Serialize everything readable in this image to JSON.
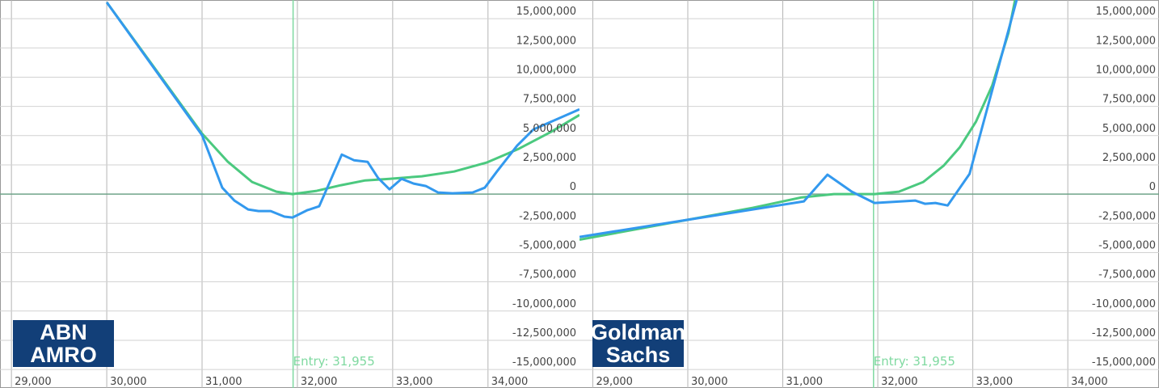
{
  "chart_data": [
    {
      "type": "line",
      "logo": [
        "ABN",
        "AMRO"
      ],
      "annotation": {
        "text": "Entry: 31,955",
        "x": 31955,
        "color": "#7fd9a0"
      },
      "xlim": [
        28880,
        34960
      ],
      "ylim": [
        -15200000,
        16600000
      ],
      "xticks": [
        {
          "value": 29000,
          "label": "29,000"
        },
        {
          "value": 30000,
          "label": "30,000"
        },
        {
          "value": 31000,
          "label": "31,000"
        },
        {
          "value": 32000,
          "label": "32,000"
        },
        {
          "value": 33000,
          "label": "33,000"
        },
        {
          "value": 34000,
          "label": "34,000"
        }
      ],
      "yticks": [
        {
          "value": 15000000,
          "label": "15,000,000"
        },
        {
          "value": 12500000,
          "label": "12,500,000"
        },
        {
          "value": 10000000,
          "label": "10,000,000"
        },
        {
          "value": 7500000,
          "label": "7,500,000"
        },
        {
          "value": 5000000,
          "label": "5,000,000"
        },
        {
          "value": 2500000,
          "label": "2,500,000"
        },
        0,
        {
          "value": -2500000,
          "label": "-2,500,000"
        },
        {
          "value": -5000000,
          "label": "-5,000,000"
        },
        {
          "value": -7500000,
          "label": "-7,500,000"
        },
        {
          "value": -10000000,
          "label": "-10,000,000"
        },
        {
          "value": -12500000,
          "label": "-12,500,000"
        },
        {
          "value": -15000000,
          "label": "-15,000,000"
        }
      ],
      "grid": true,
      "series": [
        {
          "color": "#4bc97f",
          "x": [
            30000,
            30492,
            31000,
            31271,
            31525,
            31780,
            31949,
            32203,
            32458,
            32712,
            32966,
            33305,
            33644,
            33983,
            34322,
            34661,
            34960
          ],
          "values": [
            16400000,
            10900000,
            5180000,
            2760000,
            1040000,
            210000,
            0,
            280000,
            760000,
            1170000,
            1310000,
            1520000,
            1930000,
            2690000,
            3870000,
            5320000,
            6770000
          ]
        },
        {
          "color": "#3399ee",
          "x": [
            30000,
            31000,
            31212,
            31339,
            31483,
            31593,
            31720,
            31864,
            31949,
            32102,
            32229,
            32466,
            32593,
            32737,
            32847,
            32966,
            33093,
            33220,
            33347,
            33475,
            33627,
            33839,
            33966,
            34093,
            34305,
            34475,
            34960
          ],
          "values": [
            16400000,
            5040000,
            550000,
            -550000,
            -1310000,
            -1450000,
            -1450000,
            -1930000,
            -2000000,
            -1380000,
            -1040000,
            3380000,
            2900000,
            2760000,
            1380000,
            410000,
            1310000,
            900000,
            690000,
            140000,
            70000,
            140000,
            550000,
            1930000,
            4140000,
            5520000,
            7250000
          ]
        }
      ]
    },
    {
      "type": "line",
      "logo": [
        "Goldman",
        "Sachs"
      ],
      "annotation": {
        "text": "Entry: 31,955",
        "x": 31955,
        "color": "#7fd9a0"
      },
      "xlim": [
        28860,
        34960
      ],
      "ylim": [
        -15200000,
        16600000
      ],
      "xticks": [
        {
          "value": 29000,
          "label": "29,000"
        },
        {
          "value": 30000,
          "label": "30,000"
        },
        {
          "value": 31000,
          "label": "31,000"
        },
        {
          "value": 32000,
          "label": "32,000"
        },
        {
          "value": 33000,
          "label": "33,000"
        },
        {
          "value": 34000,
          "label": "34,000"
        }
      ],
      "yticks": [
        {
          "value": 15000000,
          "label": "15,000,000"
        },
        {
          "value": 12500000,
          "label": "12,500,000"
        },
        {
          "value": 10000000,
          "label": "10,000,000"
        },
        {
          "value": 7500000,
          "label": "7,500,000"
        },
        {
          "value": 5000000,
          "label": "5,000,000"
        },
        {
          "value": 2500000,
          "label": "2,500,000"
        },
        0,
        {
          "value": -2500000,
          "label": "-2,500,000"
        },
        {
          "value": -5000000,
          "label": "-5,000,000"
        },
        {
          "value": -7500000,
          "label": "-7,500,000"
        },
        {
          "value": -10000000,
          "label": "-10,000,000"
        },
        {
          "value": -12500000,
          "label": "-12,500,000"
        },
        {
          "value": -15000000,
          "label": "-15,000,000"
        }
      ],
      "grid": true,
      "series": [
        {
          "color": "#4bc97f",
          "x": [
            28860,
            30000,
            30684,
            31197,
            31538,
            31966,
            32222,
            32479,
            32692,
            32863,
            33034,
            33205,
            33376,
            33445
          ],
          "values": [
            -3900000,
            -2200000,
            -1170000,
            -280000,
            0,
            0,
            210000,
            1040000,
            2420000,
            4000000,
            6200000,
            9300000,
            13800000,
            16600000
          ]
        },
        {
          "color": "#3399ee",
          "x": [
            28860,
            31222,
            31470,
            31726,
            31966,
            32393,
            32496,
            32607,
            32735,
            32966,
            33462
          ],
          "values": [
            -3660000,
            -620000,
            1660000,
            210000,
            -760000,
            -550000,
            -830000,
            -760000,
            -970000,
            1730000,
            16600000
          ]
        }
      ]
    }
  ]
}
